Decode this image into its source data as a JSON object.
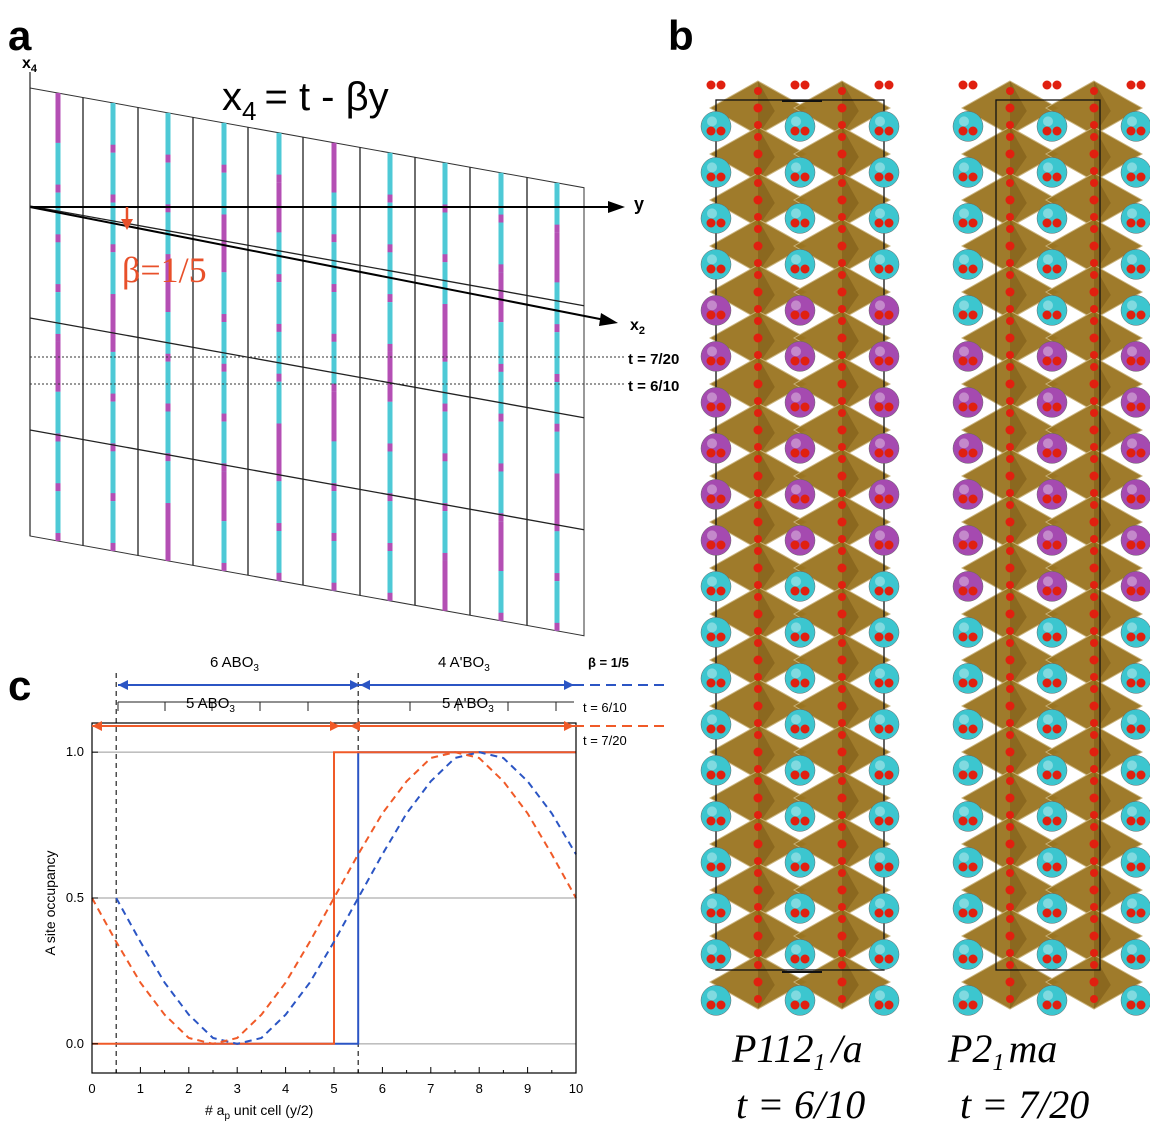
{
  "panel_a": {
    "label": "a",
    "axis_x4": "x",
    "axis_x4_sub": "4",
    "axis_y": "y",
    "axis_x2": "x",
    "axis_x2_sub": "2",
    "equation_lhs": "x",
    "equation_lhs_sub": "4",
    "equation_rhs": "= t - βy",
    "beta_label": "β=1/5",
    "t_line_1": "t = 7/20",
    "t_line_2": "t = 6/10",
    "colors": {
      "cyan": "#4ec9d6",
      "magenta": "#b44fb4",
      "red": "#e8502a"
    }
  },
  "panel_b": {
    "label": "b",
    "structure_1": {
      "group_main": "P112",
      "group_sub": "1",
      "group_tail": "/a",
      "t_label": "t = 6/10"
    },
    "structure_2": {
      "group_main": "P2",
      "group_sub": "1",
      "group_tail": "ma",
      "t_label": "t = 7/20"
    },
    "colors": {
      "octahedron": "#9a7420",
      "oxygen": "#e02010",
      "a_site": "#a54ab0",
      "a_prime_site": "#3cc6cf"
    }
  },
  "panel_c": {
    "label": "c",
    "bracket_top_left": "6 ABO",
    "bracket_top_left_sub": "3",
    "bracket_top_right": "4 A'BO",
    "bracket_top_right_sub": "3",
    "bracket_mid_left": "5 ABO",
    "bracket_mid_left_sub": "3",
    "bracket_mid_right": "5 A'BO",
    "bracket_mid_right_sub": "3",
    "legend_beta": "β = 1/5",
    "legend_t1": "t = 6/10",
    "legend_t2": "t = 7/20"
  },
  "chart_data": {
    "type": "line",
    "xlabel": "# a",
    "xlabel_sub": "p",
    "xlabel_tail": " unit cell (y/2)",
    "ylabel": "A site occupancy",
    "xlim": [
      0,
      10
    ],
    "ylim": [
      -0.1,
      1.1
    ],
    "x_ticks": [
      0,
      1,
      2,
      3,
      4,
      5,
      6,
      7,
      8,
      9,
      10
    ],
    "y_ticks": [
      0.0,
      0.5,
      1.0
    ],
    "y_tick_labels": [
      "0.0",
      "0.5",
      "1.0"
    ],
    "vertical_dashed_x": [
      0.5,
      5.5
    ],
    "series": [
      {
        "style": "step",
        "color": "#2b55c4",
        "x": [
          0.5,
          5.5,
          5.5,
          10
        ],
        "y": [
          0,
          0,
          1,
          1
        ]
      },
      {
        "style": "step",
        "color": "#f05a28",
        "x": [
          0,
          5,
          5,
          10
        ],
        "y": [
          0,
          0,
          1,
          1
        ]
      },
      {
        "style": "dashed",
        "color": "#2b55c4",
        "x": [
          0.5,
          1,
          1.5,
          2,
          2.5,
          3,
          3.5,
          4,
          4.5,
          5,
          5.5,
          6,
          6.5,
          7,
          7.5,
          8,
          8.5,
          9,
          9.5,
          10
        ],
        "y": [
          0.5,
          0.35,
          0.21,
          0.1,
          0.02,
          0.0,
          0.02,
          0.1,
          0.21,
          0.35,
          0.5,
          0.65,
          0.79,
          0.9,
          0.98,
          1.0,
          0.98,
          0.9,
          0.79,
          0.65
        ]
      },
      {
        "style": "dashed",
        "color": "#f05a28",
        "x": [
          0,
          0.5,
          1,
          1.5,
          2,
          2.5,
          3,
          3.5,
          4,
          4.5,
          5,
          5.5,
          6,
          6.5,
          7,
          7.5,
          8,
          8.5,
          9,
          9.5,
          10
        ],
        "y": [
          0.5,
          0.35,
          0.21,
          0.1,
          0.02,
          0.0,
          0.02,
          0.1,
          0.21,
          0.35,
          0.5,
          0.65,
          0.79,
          0.9,
          0.98,
          1.0,
          0.98,
          0.9,
          0.79,
          0.65,
          0.5
        ]
      }
    ]
  }
}
